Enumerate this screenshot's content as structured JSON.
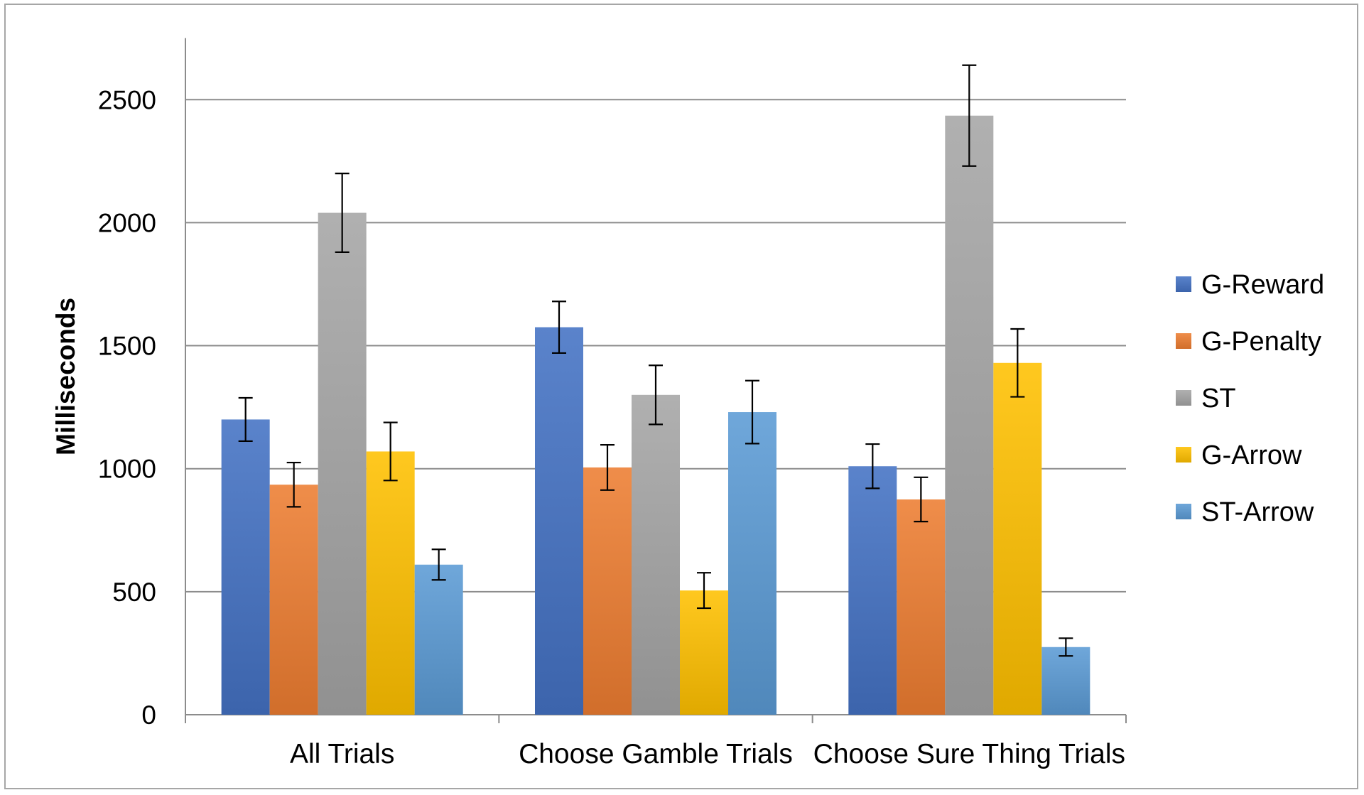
{
  "chart_data": {
    "type": "bar",
    "title": "",
    "xlabel": "",
    "ylabel": "Milliseconds",
    "ylim": [
      0,
      2750
    ],
    "yticks": [
      0,
      500,
      1000,
      1500,
      2000,
      2500
    ],
    "grid": true,
    "legend_position": "right",
    "categories": [
      "All Trials",
      "Choose Gamble Trials",
      "Choose Sure Thing Trials"
    ],
    "series": [
      {
        "name": "G-Reward",
        "color": "#4472c4",
        "values": [
          1200,
          1575,
          1010
        ],
        "errors": [
          88,
          105,
          90
        ]
      },
      {
        "name": "G-Penalty",
        "color": "#ed7d31",
        "values": [
          935,
          1005,
          875
        ],
        "errors": [
          90,
          92,
          90
        ]
      },
      {
        "name": "ST",
        "color": "#a5a5a5",
        "values": [
          2040,
          1300,
          2435
        ],
        "errors": [
          160,
          120,
          205
        ]
      },
      {
        "name": "G-Arrow",
        "color": "#ffc000",
        "values": [
          1070,
          505,
          1430
        ],
        "errors": [
          118,
          72,
          138
        ]
      },
      {
        "name": "ST-Arrow",
        "color": "#5b9bd5",
        "values": [
          610,
          1230,
          275
        ],
        "errors": [
          62,
          128,
          36
        ]
      }
    ]
  }
}
